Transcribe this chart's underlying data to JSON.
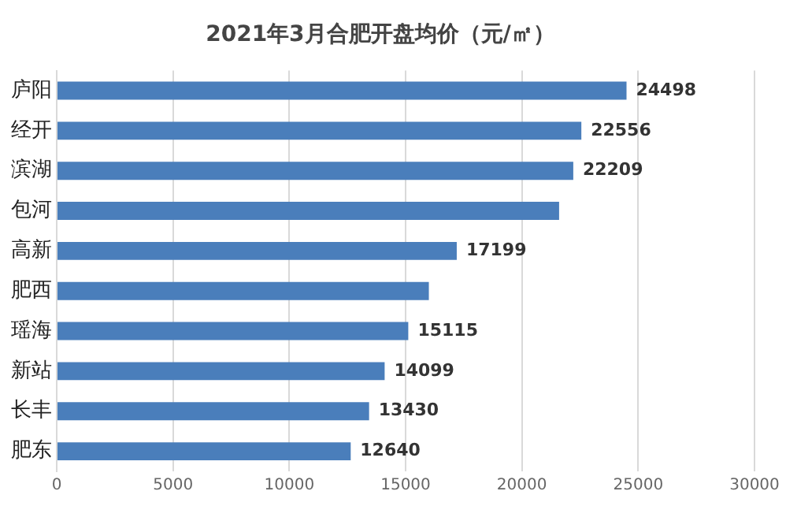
{
  "chart_data": {
    "type": "bar",
    "orientation": "horizontal",
    "title": "2021年3月合肥开盘均价（元/㎡）",
    "categories": [
      "庐阳",
      "经开",
      "滨湖",
      "包河",
      "高新",
      "肥西",
      "瑶海",
      "新站",
      "长丰",
      "肥东"
    ],
    "values": [
      24498,
      22556,
      22209,
      21600,
      17199,
      16000,
      15115,
      14099,
      13430,
      12640
    ],
    "value_labels": [
      "24498",
      "22556",
      "22209",
      null,
      "17199",
      null,
      "15115",
      "14099",
      "13430",
      "12640"
    ],
    "color": "#4a7ebb",
    "xlim": [
      0,
      30000
    ],
    "xticks": [
      0,
      5000,
      10000,
      15000,
      20000,
      25000,
      30000
    ],
    "grid": "x"
  }
}
